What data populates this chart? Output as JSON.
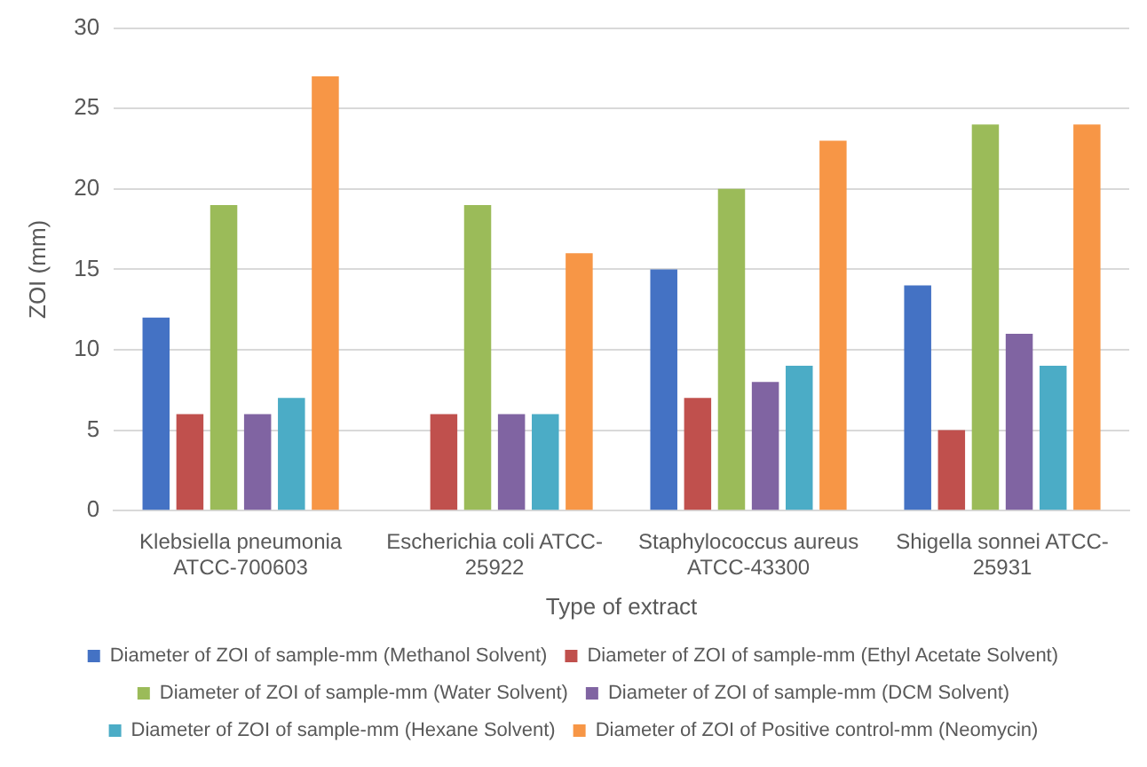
{
  "chart_data": {
    "type": "bar",
    "xlabel": "Type of extract",
    "ylabel": "ZOI (mm)",
    "categories": [
      "Klebsiella pneumonia ATCC-700603",
      "Escherichia coli ATCC-25922",
      "Staphylococcus aureus ATCC-43300",
      "Shigella sonnei ATCC-25931"
    ],
    "series": [
      {
        "name": "Diameter of ZOI of sample-mm (Methanol Solvent)",
        "color": "#4472c4",
        "values": [
          12,
          null,
          15,
          14
        ]
      },
      {
        "name": "Diameter of ZOI of sample-mm (Ethyl Acetate Solvent)",
        "color": "#c0504d",
        "values": [
          6,
          6,
          7,
          5
        ]
      },
      {
        "name": "Diameter of ZOI of sample-mm (Water Solvent)",
        "color": "#9bbb59",
        "values": [
          19,
          19,
          20,
          24
        ]
      },
      {
        "name": "Diameter of ZOI of sample-mm (DCM Solvent)",
        "color": "#8064a2",
        "values": [
          6,
          6,
          8,
          11
        ]
      },
      {
        "name": "Diameter of ZOI of sample-mm (Hexane Solvent)",
        "color": "#4bacc6",
        "values": [
          7,
          6,
          9,
          9
        ]
      },
      {
        "name": "Diameter of ZOI of Positive control-mm (Neomycin)",
        "color": "#f79646",
        "values": [
          27,
          16,
          23,
          24
        ]
      }
    ],
    "ylim": [
      0,
      30
    ],
    "yticks": [
      0,
      5,
      10,
      15,
      20,
      25,
      30
    ],
    "grid": "y",
    "legend": "bottom"
  }
}
